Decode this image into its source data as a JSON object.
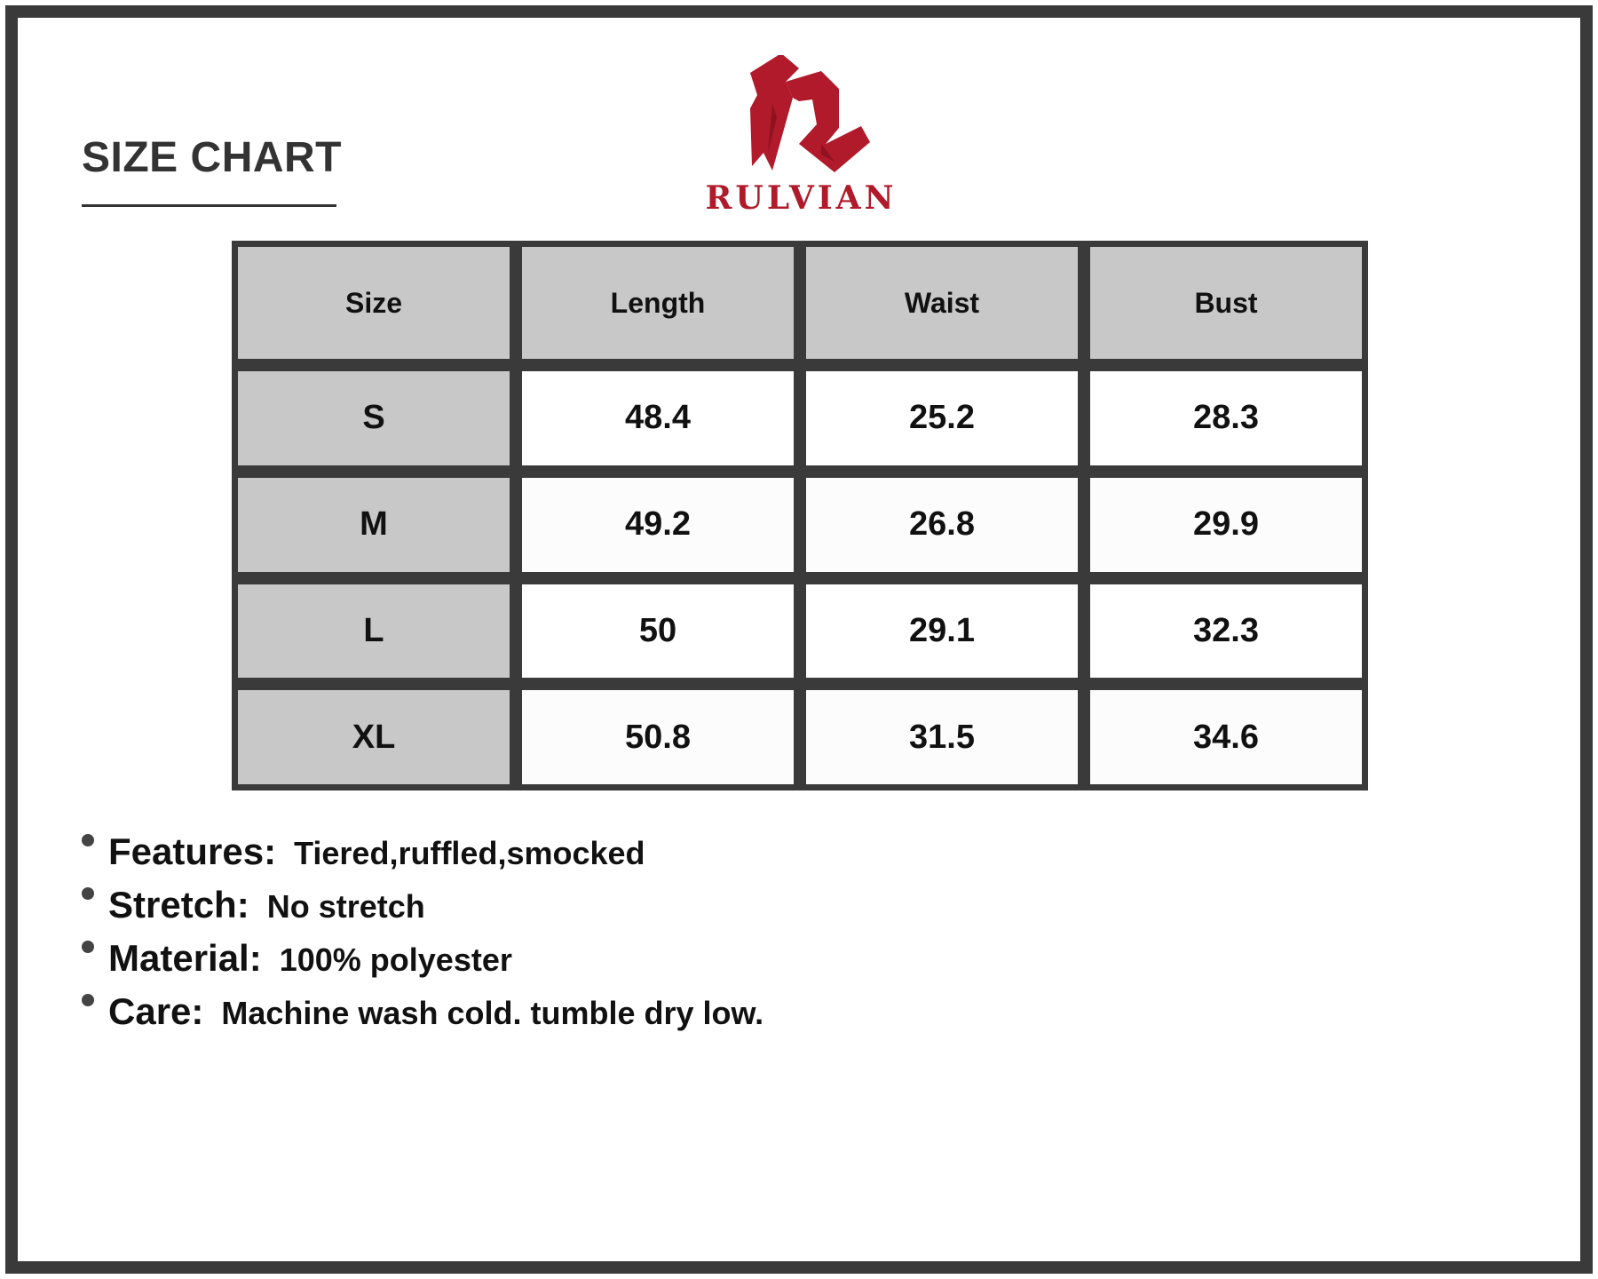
{
  "title": "SIZE CHART",
  "brand": {
    "name": "RULVIAN",
    "color": "#b01a2a"
  },
  "table": {
    "headers": [
      "Size",
      "Length",
      "Waist",
      "Bust"
    ],
    "rows": [
      [
        "S",
        "48.4",
        "25.2",
        "28.3"
      ],
      [
        "M",
        "49.2",
        "26.8",
        "29.9"
      ],
      [
        "L",
        "50",
        "29.1",
        "32.3"
      ],
      [
        "XL",
        "50.8",
        "31.5",
        "34.6"
      ]
    ]
  },
  "specs": [
    {
      "label": "Features:",
      "value": "Tiered,ruffled,smocked"
    },
    {
      "label": "Stretch:",
      "value": "No stretch"
    },
    {
      "label": "Material:",
      "value": "100% polyester"
    },
    {
      "label": "Care:",
      "value": "Machine wash cold. tumble dry low."
    }
  ]
}
